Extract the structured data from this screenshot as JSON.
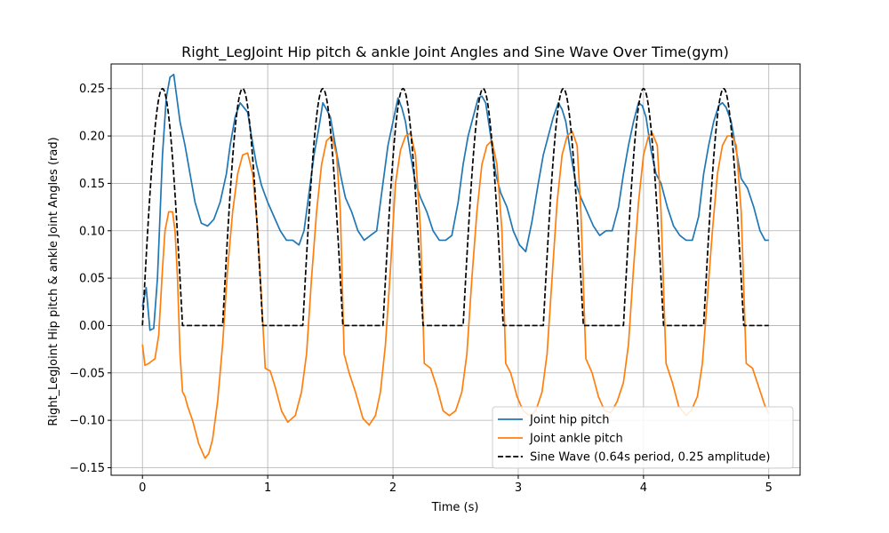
{
  "chart_data": {
    "type": "line",
    "title": "Right_LegJoint Hip pitch & ankle Joint Angles and Sine Wave Over Time(gym)",
    "xlabel": "Time (s)",
    "ylabel": "Right_LegJoint Hip pitch & ankle Joint Angles (rad)",
    "xlim": [
      -0.25,
      5.25
    ],
    "ylim": [
      -0.158,
      0.276
    ],
    "xticks": [
      0,
      1,
      2,
      3,
      4,
      5
    ],
    "xtick_labels": [
      "0",
      "1",
      "2",
      "3",
      "4",
      "5"
    ],
    "yticks": [
      -0.15,
      -0.1,
      -0.05,
      0.0,
      0.05,
      0.1,
      0.15,
      0.2,
      0.25
    ],
    "ytick_labels": [
      "−0.15",
      "−0.10",
      "−0.05",
      "0.00",
      "0.05",
      "0.10",
      "0.15",
      "0.20",
      "0.25"
    ],
    "grid": true,
    "legend_position": "lower-right",
    "series": [
      {
        "name": "Joint hip pitch",
        "color": "#1f77b4",
        "style": "solid",
        "x": [
          0.0,
          0.03,
          0.06,
          0.09,
          0.12,
          0.16,
          0.19,
          0.22,
          0.25,
          0.27,
          0.3,
          0.34,
          0.38,
          0.42,
          0.47,
          0.52,
          0.57,
          0.62,
          0.67,
          0.7,
          0.74,
          0.78,
          0.81,
          0.84,
          0.87,
          0.91,
          0.95,
          1.0,
          1.05,
          1.1,
          1.15,
          1.2,
          1.25,
          1.29,
          1.33,
          1.37,
          1.41,
          1.44,
          1.47,
          1.5,
          1.54,
          1.58,
          1.62,
          1.67,
          1.72,
          1.77,
          1.82,
          1.87,
          1.92,
          1.96,
          2.0,
          2.04,
          2.07,
          2.1,
          2.14,
          2.18,
          2.22,
          2.27,
          2.32,
          2.37,
          2.42,
          2.47,
          2.52,
          2.56,
          2.6,
          2.64,
          2.68,
          2.71,
          2.74,
          2.78,
          2.82,
          2.86,
          2.91,
          2.96,
          3.01,
          3.06,
          3.11,
          3.16,
          3.2,
          3.24,
          3.28,
          3.32,
          3.35,
          3.38,
          3.42,
          3.46,
          3.5,
          3.55,
          3.6,
          3.65,
          3.7,
          3.75,
          3.8,
          3.84,
          3.88,
          3.92,
          3.96,
          3.99,
          4.02,
          4.06,
          4.1,
          4.14,
          4.19,
          4.24,
          4.29,
          4.34,
          4.39,
          4.44,
          4.48,
          4.52,
          4.56,
          4.6,
          4.63,
          4.66,
          4.7,
          4.74,
          4.78,
          4.83,
          4.88,
          4.93,
          4.97,
          5.0
        ],
        "values": [
          0.02,
          0.04,
          -0.005,
          -0.003,
          0.05,
          0.18,
          0.24,
          0.262,
          0.265,
          0.245,
          0.215,
          0.19,
          0.16,
          0.13,
          0.108,
          0.105,
          0.112,
          0.13,
          0.16,
          0.19,
          0.22,
          0.235,
          0.23,
          0.225,
          0.2,
          0.17,
          0.148,
          0.13,
          0.115,
          0.1,
          0.09,
          0.09,
          0.085,
          0.1,
          0.14,
          0.18,
          0.21,
          0.235,
          0.228,
          0.22,
          0.19,
          0.16,
          0.135,
          0.12,
          0.1,
          0.09,
          0.095,
          0.1,
          0.15,
          0.19,
          0.215,
          0.24,
          0.23,
          0.215,
          0.18,
          0.15,
          0.135,
          0.12,
          0.1,
          0.09,
          0.09,
          0.095,
          0.13,
          0.17,
          0.2,
          0.22,
          0.24,
          0.242,
          0.235,
          0.2,
          0.16,
          0.14,
          0.125,
          0.1,
          0.085,
          0.078,
          0.11,
          0.15,
          0.18,
          0.2,
          0.22,
          0.235,
          0.228,
          0.215,
          0.18,
          0.15,
          0.135,
          0.12,
          0.105,
          0.095,
          0.1,
          0.1,
          0.125,
          0.16,
          0.19,
          0.215,
          0.235,
          0.232,
          0.22,
          0.185,
          0.16,
          0.15,
          0.125,
          0.105,
          0.095,
          0.09,
          0.09,
          0.115,
          0.16,
          0.19,
          0.215,
          0.232,
          0.235,
          0.23,
          0.215,
          0.185,
          0.155,
          0.145,
          0.125,
          0.1,
          0.09,
          0.09
        ]
      },
      {
        "name": "Joint ankle pitch",
        "color": "#ff7f0e",
        "style": "solid",
        "x": [
          0.0,
          0.02,
          0.05,
          0.1,
          0.13,
          0.16,
          0.18,
          0.21,
          0.24,
          0.26,
          0.28,
          0.3,
          0.32,
          0.34,
          0.36,
          0.4,
          0.45,
          0.5,
          0.53,
          0.56,
          0.6,
          0.64,
          0.68,
          0.72,
          0.76,
          0.8,
          0.84,
          0.88,
          0.92,
          0.95,
          0.98,
          1.02,
          1.06,
          1.11,
          1.16,
          1.22,
          1.27,
          1.31,
          1.35,
          1.39,
          1.43,
          1.47,
          1.51,
          1.55,
          1.58,
          1.61,
          1.65,
          1.7,
          1.76,
          1.81,
          1.86,
          1.9,
          1.94,
          1.98,
          2.02,
          2.06,
          2.1,
          2.14,
          2.18,
          2.22,
          2.25,
          2.3,
          2.35,
          2.4,
          2.45,
          2.5,
          2.55,
          2.59,
          2.63,
          2.67,
          2.71,
          2.75,
          2.79,
          2.83,
          2.87,
          2.9,
          2.94,
          2.99,
          3.04,
          3.09,
          3.14,
          3.19,
          3.23,
          3.27,
          3.31,
          3.35,
          3.39,
          3.43,
          3.47,
          3.5,
          3.54,
          3.59,
          3.64,
          3.69,
          3.74,
          3.79,
          3.84,
          3.88,
          3.92,
          3.96,
          4.0,
          4.04,
          4.07,
          4.11,
          4.14,
          4.18,
          4.23,
          4.28,
          4.34,
          4.38,
          4.43,
          4.47,
          4.51,
          4.55,
          4.59,
          4.63,
          4.67,
          4.71,
          4.74,
          4.78,
          4.82,
          4.87,
          4.92,
          4.97,
          5.0
        ],
        "values": [
          -0.02,
          -0.042,
          -0.04,
          -0.035,
          -0.01,
          0.06,
          0.1,
          0.12,
          0.12,
          0.1,
          0.05,
          -0.03,
          -0.07,
          -0.075,
          -0.085,
          -0.1,
          -0.125,
          -0.14,
          -0.135,
          -0.12,
          -0.08,
          -0.02,
          0.06,
          0.12,
          0.16,
          0.18,
          0.182,
          0.16,
          0.1,
          0.03,
          -0.045,
          -0.048,
          -0.065,
          -0.09,
          -0.102,
          -0.095,
          -0.07,
          -0.03,
          0.05,
          0.12,
          0.17,
          0.195,
          0.2,
          0.18,
          0.12,
          -0.03,
          -0.05,
          -0.07,
          -0.098,
          -0.105,
          -0.095,
          -0.07,
          -0.02,
          0.06,
          0.15,
          0.185,
          0.2,
          0.203,
          0.18,
          0.1,
          -0.04,
          -0.045,
          -0.065,
          -0.09,
          -0.095,
          -0.09,
          -0.07,
          -0.03,
          0.05,
          0.12,
          0.17,
          0.19,
          0.195,
          0.17,
          0.1,
          -0.04,
          -0.05,
          -0.075,
          -0.09,
          -0.095,
          -0.09,
          -0.07,
          -0.03,
          0.05,
          0.13,
          0.18,
          0.2,
          0.205,
          0.19,
          0.12,
          -0.035,
          -0.05,
          -0.075,
          -0.09,
          -0.092,
          -0.08,
          -0.06,
          -0.02,
          0.06,
          0.13,
          0.18,
          0.2,
          0.203,
          0.19,
          0.12,
          -0.04,
          -0.06,
          -0.085,
          -0.095,
          -0.09,
          -0.075,
          -0.04,
          0.03,
          0.1,
          0.16,
          0.19,
          0.2,
          0.2,
          0.19,
          0.12,
          -0.04,
          -0.045,
          -0.065,
          -0.085,
          -0.093
        ]
      },
      {
        "name": "Sine Wave (0.64s period, 0.25 amplitude)",
        "color": "#000000",
        "style": "dashed",
        "period": 0.64,
        "amplitude": 0.25,
        "x_start": 0,
        "x_end": 5
      }
    ]
  }
}
